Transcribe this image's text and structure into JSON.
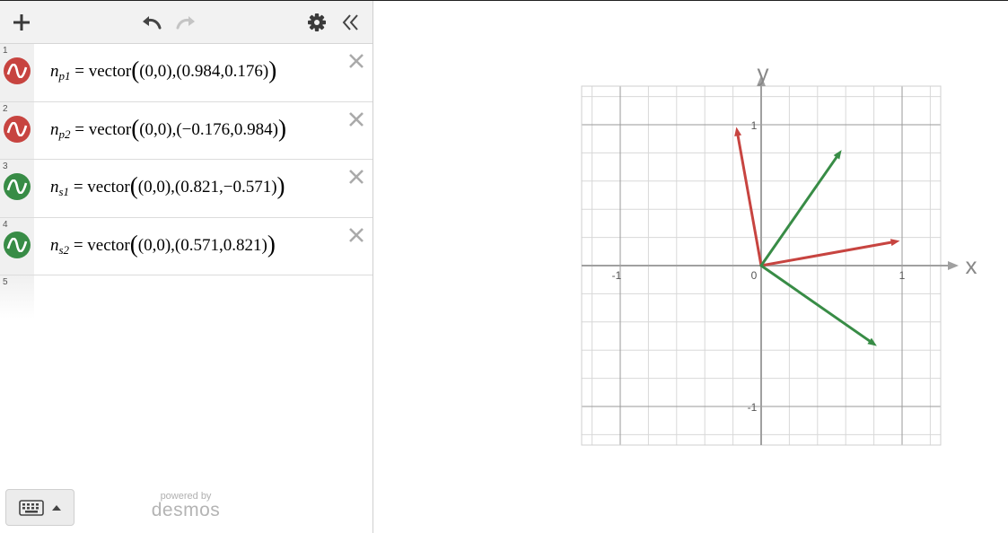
{
  "app": {
    "brand": "desmos",
    "powered_by": "powered by"
  },
  "toolbar": {
    "add_icon": "plus-icon",
    "undo_icon": "undo-icon",
    "redo_icon": "redo-icon",
    "settings_icon": "gear-icon",
    "collapse_icon": "double-chevron-left-icon"
  },
  "expressions": [
    {
      "index": "1",
      "color": "#c74440",
      "name": "n",
      "sub": "p1",
      "func": "vector",
      "start": "(0,0)",
      "end": "(0.984,0.176)",
      "vector": [
        0.984,
        0.176
      ]
    },
    {
      "index": "2",
      "color": "#c74440",
      "name": "n",
      "sub": "p2",
      "func": "vector",
      "start": "(0,0)",
      "end": "(−0.176,0.984)",
      "vector": [
        -0.176,
        0.984
      ]
    },
    {
      "index": "3",
      "color": "#388c46",
      "name": "n",
      "sub": "s1",
      "func": "vector",
      "start": "(0,0)",
      "end": "(0.821,−0.571)",
      "vector": [
        0.821,
        -0.571
      ]
    },
    {
      "index": "4",
      "color": "#388c46",
      "name": "n",
      "sub": "s2",
      "func": "vector",
      "start": "(0,0)",
      "end": "(0.571,0.821)",
      "vector": [
        0.571,
        0.821
      ]
    }
  ],
  "empty_row_index": "5",
  "graph": {
    "xlabel": "x",
    "ylabel": "y",
    "xlim": [
      -1.28,
      1.28
    ],
    "ylim": [
      -1.28,
      1.28
    ],
    "ticks": {
      "x_neg": "-1",
      "x_pos": "1",
      "y_pos": "1",
      "y_neg": "-1",
      "origin": "0"
    },
    "grid": true
  }
}
